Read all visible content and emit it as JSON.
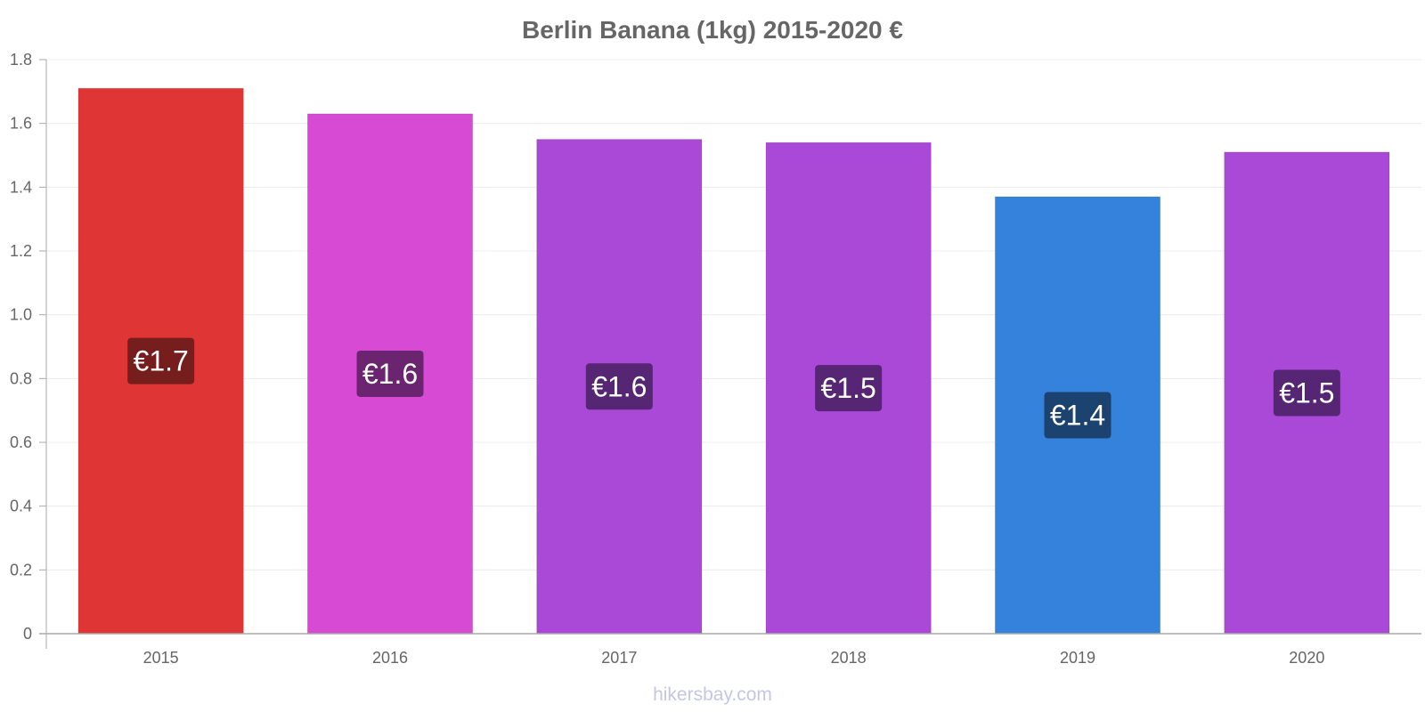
{
  "chart_data": {
    "type": "bar",
    "title": "Berlin Banana (1kg) 2015-2020 €",
    "categories": [
      "2015",
      "2016",
      "2017",
      "2018",
      "2019",
      "2020"
    ],
    "values": [
      1.71,
      1.63,
      1.55,
      1.54,
      1.37,
      1.51
    ],
    "data_labels": [
      "€1.7",
      "€1.6",
      "€1.6",
      "€1.5",
      "€1.4",
      "€1.5"
    ],
    "bar_colors": [
      "#e03535",
      "#d64ad4",
      "#aa48d8",
      "#aa48d8",
      "#3582dd",
      "#aa48d8"
    ],
    "label_bg_colors": [
      "#761e1e",
      "#6b2470",
      "#562574",
      "#562574",
      "#1c4370",
      "#562574"
    ],
    "ylim": [
      0,
      1.8
    ],
    "yticks": [
      0,
      0.2,
      0.4,
      0.6,
      0.8,
      1.0,
      1.2,
      1.4,
      1.6,
      1.8
    ],
    "ytick_labels": [
      "0",
      "0.2",
      "0.4",
      "0.6",
      "0.8",
      "1.0",
      "1.2",
      "1.4",
      "1.6",
      "1.8"
    ],
    "xlabel": "",
    "ylabel": "",
    "grid": true,
    "credit": "hikersbay.com"
  }
}
